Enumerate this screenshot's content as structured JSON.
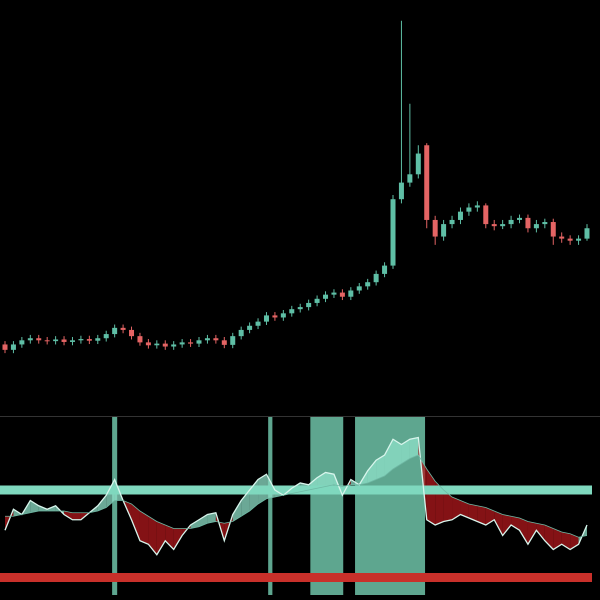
{
  "chart_data": [
    {
      "type": "candlestick",
      "up_color": "#5fbfa6",
      "down_color": "#e46464",
      "ylim": [
        0,
        100
      ],
      "open": [
        17,
        15.7,
        17,
        18,
        18.5,
        18,
        17.8,
        18.2,
        17.6,
        18,
        18.3,
        17.9,
        18.5,
        19.5,
        21,
        20.5,
        19,
        17.5,
        16.8,
        17.2,
        16.5,
        17,
        17.5,
        17.2,
        18,
        18.5,
        18,
        16.9,
        19,
        20.5,
        21.5,
        22.5,
        24,
        23.5,
        24.5,
        25.5,
        26,
        27,
        28,
        29,
        29.5,
        28.5,
        30,
        31,
        32,
        34,
        36,
        52,
        56,
        58,
        65,
        47,
        43,
        46,
        47,
        49,
        50,
        50.5,
        46,
        45.5,
        46,
        47,
        47.5,
        45,
        46,
        46.5,
        43,
        42.5,
        42,
        42.5
      ],
      "high": [
        17.8,
        17.8,
        18.8,
        19.3,
        19.3,
        18.8,
        19,
        19,
        18.8,
        19.1,
        19.1,
        19.3,
        20.3,
        21.8,
        21.8,
        21.3,
        19.8,
        18.3,
        18,
        18,
        17.8,
        18.3,
        18.3,
        18.8,
        19.3,
        19.3,
        18.8,
        19.8,
        21.3,
        22.3,
        23.3,
        24.8,
        24.8,
        25.3,
        26.3,
        26.8,
        27.8,
        28.8,
        29.8,
        30.3,
        30.3,
        30.8,
        31.8,
        32.8,
        34.8,
        36.8,
        53,
        95,
        75,
        65,
        65.5,
        48,
        47,
        48,
        50,
        51,
        51.5,
        51,
        47,
        47,
        48,
        48.3,
        48.3,
        47,
        47.3,
        47.3,
        44,
        43.3,
        43.3,
        46
      ],
      "low": [
        14.9,
        14.9,
        16.2,
        17.2,
        17.2,
        17,
        17,
        16.8,
        16.8,
        17.2,
        17.1,
        17.1,
        17.7,
        18.7,
        19.7,
        18.2,
        16.7,
        16,
        16,
        15.7,
        15.7,
        16.2,
        16.4,
        16.4,
        17.2,
        17.2,
        16.1,
        16.1,
        18.2,
        19.7,
        20.7,
        21.7,
        22.7,
        22.7,
        23.7,
        24.7,
        25.2,
        26.2,
        27.2,
        28.2,
        27.7,
        27.7,
        29.2,
        30.2,
        31.2,
        33.2,
        35.2,
        51,
        55,
        57,
        45,
        41,
        42,
        45,
        46,
        48,
        49,
        45,
        44.5,
        44.8,
        45,
        46.2,
        44,
        44,
        45,
        41,
        41.5,
        41,
        41,
        42
      ],
      "close": [
        15.7,
        17,
        18,
        18.5,
        18,
        17.8,
        18.2,
        17.6,
        18,
        18.3,
        17.9,
        18.5,
        19.5,
        21,
        20.5,
        19,
        17.5,
        16.8,
        17.2,
        16.5,
        17,
        17.5,
        17.2,
        18,
        18.5,
        18,
        16.9,
        19,
        20.5,
        21.5,
        22.5,
        24,
        23.5,
        24.5,
        25.5,
        26,
        27,
        28,
        29,
        29.5,
        28.5,
        30,
        31,
        32,
        34,
        36,
        52,
        56,
        58,
        63,
        47,
        43,
        46,
        47,
        49,
        50,
        50.5,
        46,
        45.5,
        46,
        47,
        47.5,
        45,
        46,
        46.5,
        43,
        42.5,
        42,
        42.5,
        45
      ]
    },
    {
      "type": "indicator",
      "ylim": [
        0,
        100
      ],
      "up_fill": "#8fe0c8",
      "down_fill": "#b0181c",
      "series": [
        {
          "color": "#d8f5ec",
          "values": [
            37,
            49,
            46,
            54,
            51,
            49,
            51,
            46,
            43,
            43,
            47,
            51,
            57,
            66,
            54,
            43,
            31,
            29,
            23,
            31,
            26,
            34,
            40,
            43,
            46,
            47,
            31,
            46,
            54,
            60,
            66,
            69,
            60,
            57,
            61,
            64,
            63,
            67,
            70,
            69,
            57,
            66,
            63,
            71,
            77,
            80,
            89,
            86,
            89,
            90,
            43,
            40,
            42,
            43,
            46,
            44,
            42,
            40,
            43,
            34,
            40,
            37,
            29,
            37,
            31,
            26,
            29,
            26,
            29,
            40
          ]
        },
        {
          "color": "#6fb8a4",
          "values": [
            45,
            45,
            46,
            47,
            48,
            48,
            48,
            48,
            47,
            47,
            47,
            48,
            50,
            54,
            54,
            52,
            48,
            45,
            42,
            40,
            38,
            38,
            38,
            39,
            41,
            42,
            41,
            42,
            45,
            48,
            52,
            55,
            56,
            57,
            58,
            59,
            60,
            61,
            62,
            63,
            62,
            63,
            63,
            64,
            66,
            68,
            72,
            75,
            78,
            80,
            72,
            65,
            60,
            56,
            54,
            52,
            51,
            50,
            48,
            46,
            45,
            44,
            42,
            41,
            40,
            38,
            36,
            35,
            33,
            34
          ]
        }
      ],
      "levels": [
        {
          "value": 60,
          "color": "#7fd8be"
        },
        {
          "value": 10,
          "color": "#c8302a"
        }
      ],
      "region_color": "#6ec3a8",
      "regions": [
        [
          12.7,
          13.3
        ],
        [
          31.2,
          31.7
        ],
        [
          36.2,
          40.1
        ],
        [
          41.5,
          49.8
        ]
      ]
    }
  ]
}
